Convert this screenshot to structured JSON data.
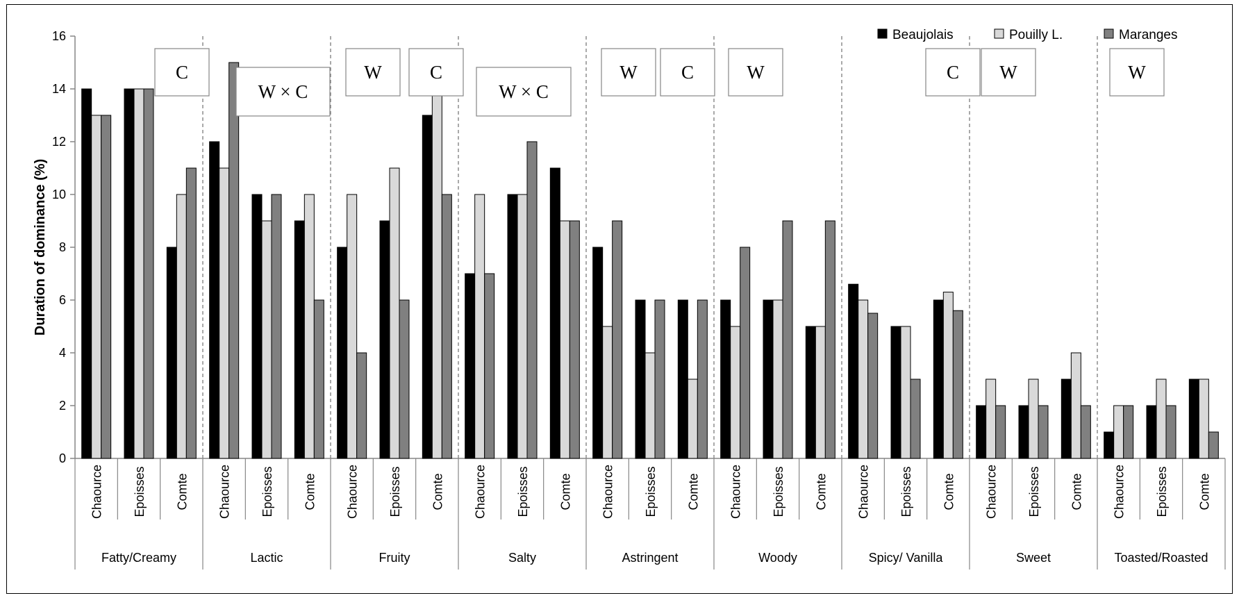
{
  "chart_data": {
    "type": "bar",
    "ylabel": "Duration of dominance (%)",
    "ylim": [
      0,
      16
    ],
    "yticks": [
      0,
      2,
      4,
      6,
      8,
      10,
      12,
      14,
      16
    ],
    "grid": false,
    "legend_position": "top-right",
    "series": [
      {
        "name": "Beaujolais",
        "color": "#000000"
      },
      {
        "name": "Pouilly L.",
        "color": "#d9d9d9"
      },
      {
        "name": "Maranges",
        "color": "#808080"
      }
    ],
    "groups": [
      {
        "name": "Fatty/Creamy",
        "annotations": [
          "C"
        ],
        "cheeses": [
          {
            "name": "Chaource",
            "values": [
              14,
              13,
              13
            ]
          },
          {
            "name": "Epoisses",
            "values": [
              14,
              14,
              14
            ]
          },
          {
            "name": "Comte",
            "values": [
              8,
              10,
              11
            ]
          }
        ]
      },
      {
        "name": "Lactic",
        "annotations": [
          "W × C"
        ],
        "cheeses": [
          {
            "name": "Chaource",
            "values": [
              12,
              11,
              15
            ]
          },
          {
            "name": "Epoisses",
            "values": [
              10,
              9,
              10
            ]
          },
          {
            "name": "Comte",
            "values": [
              9,
              10,
              6
            ]
          }
        ]
      },
      {
        "name": "Fruity",
        "annotations": [
          "W",
          "C"
        ],
        "cheeses": [
          {
            "name": "Chaource",
            "values": [
              8,
              10,
              4
            ]
          },
          {
            "name": "Epoisses",
            "values": [
              9,
              11,
              6
            ]
          },
          {
            "name": "Comte",
            "values": [
              13,
              14,
              10
            ]
          }
        ]
      },
      {
        "name": "Salty",
        "annotations": [
          "W × C"
        ],
        "cheeses": [
          {
            "name": "Chaource",
            "values": [
              7,
              10,
              7
            ]
          },
          {
            "name": "Epoisses",
            "values": [
              10,
              10,
              12
            ]
          },
          {
            "name": "Comte",
            "values": [
              11,
              9,
              9
            ]
          }
        ]
      },
      {
        "name": "Astringent",
        "annotations": [
          "W",
          "C"
        ],
        "cheeses": [
          {
            "name": "Chaource",
            "values": [
              8,
              5,
              9
            ]
          },
          {
            "name": "Epoisses",
            "values": [
              6,
              4,
              6
            ]
          },
          {
            "name": "Comte",
            "values": [
              6,
              3,
              6
            ]
          }
        ]
      },
      {
        "name": "Woody",
        "annotations": [
          "W"
        ],
        "cheeses": [
          {
            "name": "Chaource",
            "values": [
              6,
              5,
              8
            ]
          },
          {
            "name": "Epoisses",
            "values": [
              6,
              6,
              9
            ]
          },
          {
            "name": "Comte",
            "values": [
              5,
              5,
              9
            ]
          }
        ]
      },
      {
        "name": "Spicy/ Vanilla",
        "annotations": [
          "C"
        ],
        "cheeses": [
          {
            "name": "Chaource",
            "values": [
              6.6,
              6,
              5.5
            ]
          },
          {
            "name": "Epoisses",
            "values": [
              5,
              5,
              3
            ]
          },
          {
            "name": "Comte",
            "values": [
              6,
              6.3,
              5.6
            ]
          }
        ]
      },
      {
        "name": "Sweet",
        "annotations": [
          "W"
        ],
        "cheeses": [
          {
            "name": "Chaource",
            "values": [
              2,
              3,
              2
            ]
          },
          {
            "name": "Epoisses",
            "values": [
              2,
              3,
              2
            ]
          },
          {
            "name": "Comte",
            "values": [
              3,
              4,
              2
            ]
          }
        ]
      },
      {
        "name": "Toasted/Roasted",
        "annotations": [
          "W"
        ],
        "cheeses": [
          {
            "name": "Chaource",
            "values": [
              1,
              2,
              2
            ]
          },
          {
            "name": "Epoisses",
            "values": [
              2,
              3,
              2
            ]
          },
          {
            "name": "Comte",
            "values": [
              3,
              3,
              1
            ]
          }
        ]
      }
    ]
  }
}
